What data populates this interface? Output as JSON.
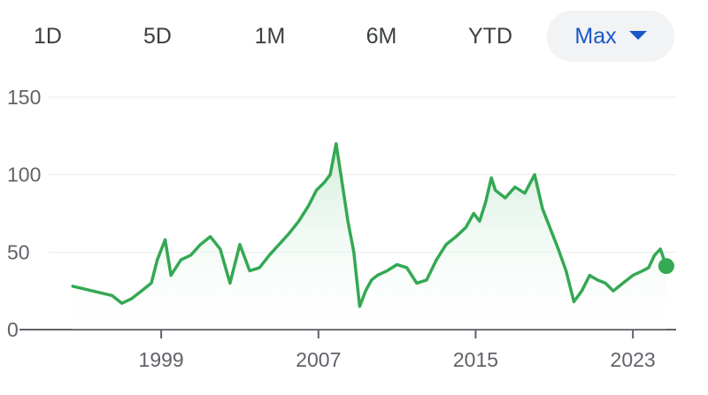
{
  "range_selector": {
    "options": [
      "1D",
      "5D",
      "1M",
      "6M",
      "YTD",
      "Max"
    ],
    "selected": "Max"
  },
  "colors": {
    "line": "#34a853",
    "fill": "#e6f4ea",
    "grid": "#e8eaed",
    "axis": "#5f6368",
    "selected_text": "#1a57c8",
    "selected_bg": "#f1f3f4"
  },
  "chart_data": {
    "type": "area",
    "xlabel": "",
    "ylabel": "",
    "ylim": [
      0,
      150
    ],
    "y_ticks": [
      0,
      50,
      100,
      150
    ],
    "x_ticks": [
      "1999",
      "2007",
      "2015",
      "2023"
    ],
    "grid": true,
    "series": [
      {
        "x": [
          1994.5,
          1995.5,
          1996.5,
          1997.0,
          1997.5,
          1998.0,
          1998.5,
          1998.8,
          1999.2,
          1999.5,
          2000.0,
          2000.5,
          2001.0,
          2001.5,
          2002.0,
          2002.5,
          2003.0,
          2003.5,
          2004.0,
          2004.5,
          2005.0,
          2005.5,
          2006.0,
          2006.5,
          2006.9,
          2007.3,
          2007.6,
          2007.9,
          2008.2,
          2008.5,
          2008.8,
          2009.1,
          2009.4,
          2009.7,
          2010.0,
          2010.5,
          2011.0,
          2011.5,
          2012.0,
          2012.5,
          2013.0,
          2013.5,
          2014.0,
          2014.5,
          2014.9,
          2015.2,
          2015.5,
          2015.8,
          2016.0,
          2016.5,
          2017.0,
          2017.5,
          2018.0,
          2018.4,
          2018.8,
          2019.2,
          2019.6,
          2020.0,
          2020.4,
          2020.8,
          2021.2,
          2021.6,
          2022.0,
          2022.5,
          2023.0,
          2023.5,
          2023.8,
          2024.1,
          2024.4,
          2024.7
        ],
        "y": [
          28,
          25,
          22,
          17,
          20,
          25,
          30,
          45,
          58,
          35,
          45,
          48,
          55,
          60,
          52,
          30,
          55,
          38,
          40,
          48,
          55,
          62,
          70,
          80,
          90,
          95,
          100,
          120,
          95,
          70,
          50,
          15,
          25,
          32,
          35,
          38,
          42,
          40,
          30,
          32,
          45,
          55,
          60,
          66,
          75,
          70,
          82,
          98,
          90,
          85,
          92,
          88,
          100,
          78,
          65,
          52,
          38,
          18,
          25,
          35,
          32,
          30,
          25,
          30,
          35,
          38,
          40,
          48,
          52,
          41
        ]
      }
    ]
  }
}
